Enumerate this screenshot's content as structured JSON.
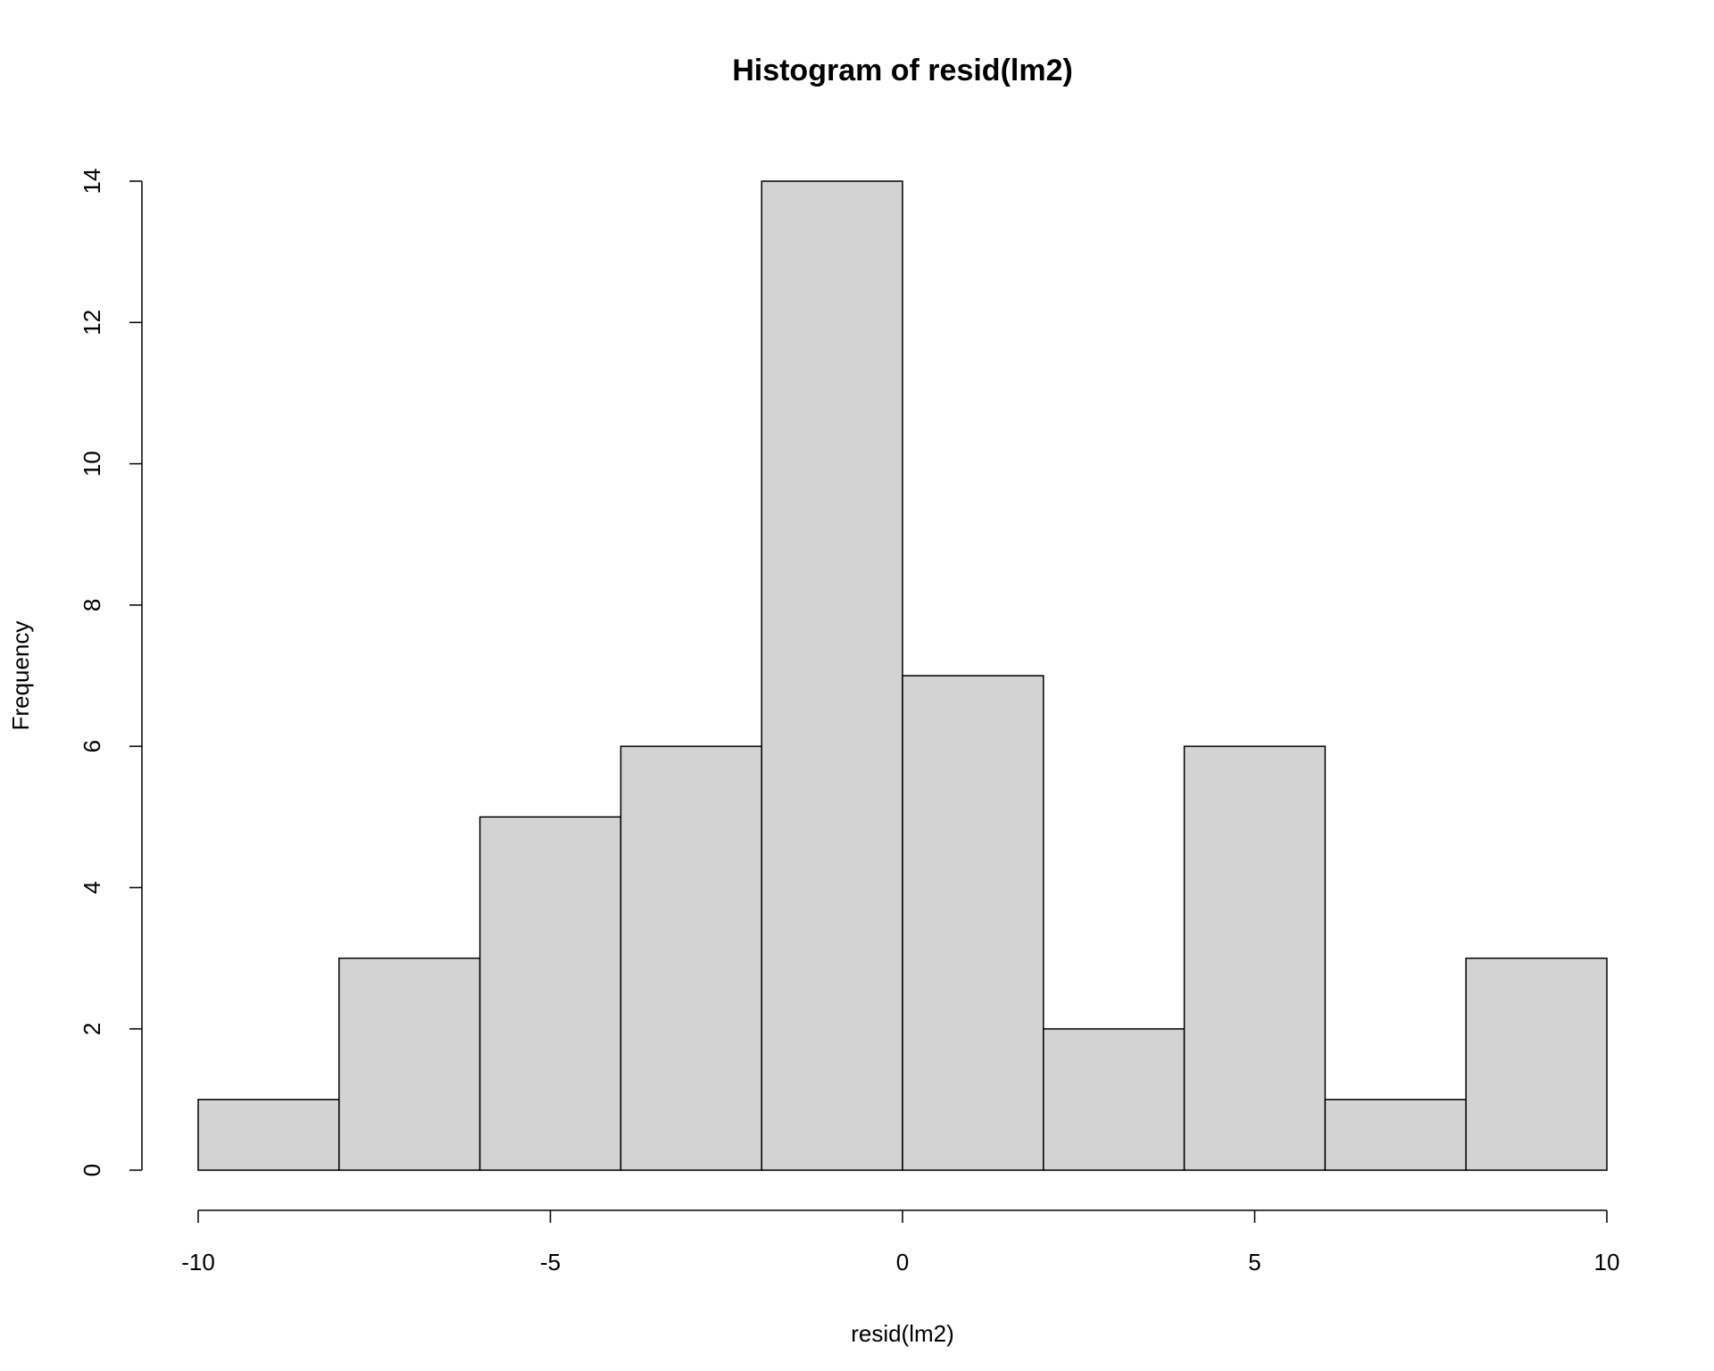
{
  "chart_data": {
    "type": "histogram",
    "title": "Histogram of resid(lm2)",
    "x_label": "resid(lm2)",
    "y_label": "Frequency",
    "bins": [
      -10,
      -8,
      -6,
      -4,
      -2,
      0,
      2,
      4,
      6,
      8,
      10
    ],
    "values": [
      1,
      3,
      5,
      6,
      14,
      7,
      2,
      6,
      1,
      3
    ],
    "color": "#d3d3d3",
    "xlim": [
      -10,
      10
    ],
    "xticks": [
      -10,
      -5,
      0,
      5,
      10
    ],
    "ylim": [
      0,
      14
    ],
    "yticks": [
      0,
      2,
      4,
      6,
      8,
      10,
      12,
      14
    ]
  }
}
